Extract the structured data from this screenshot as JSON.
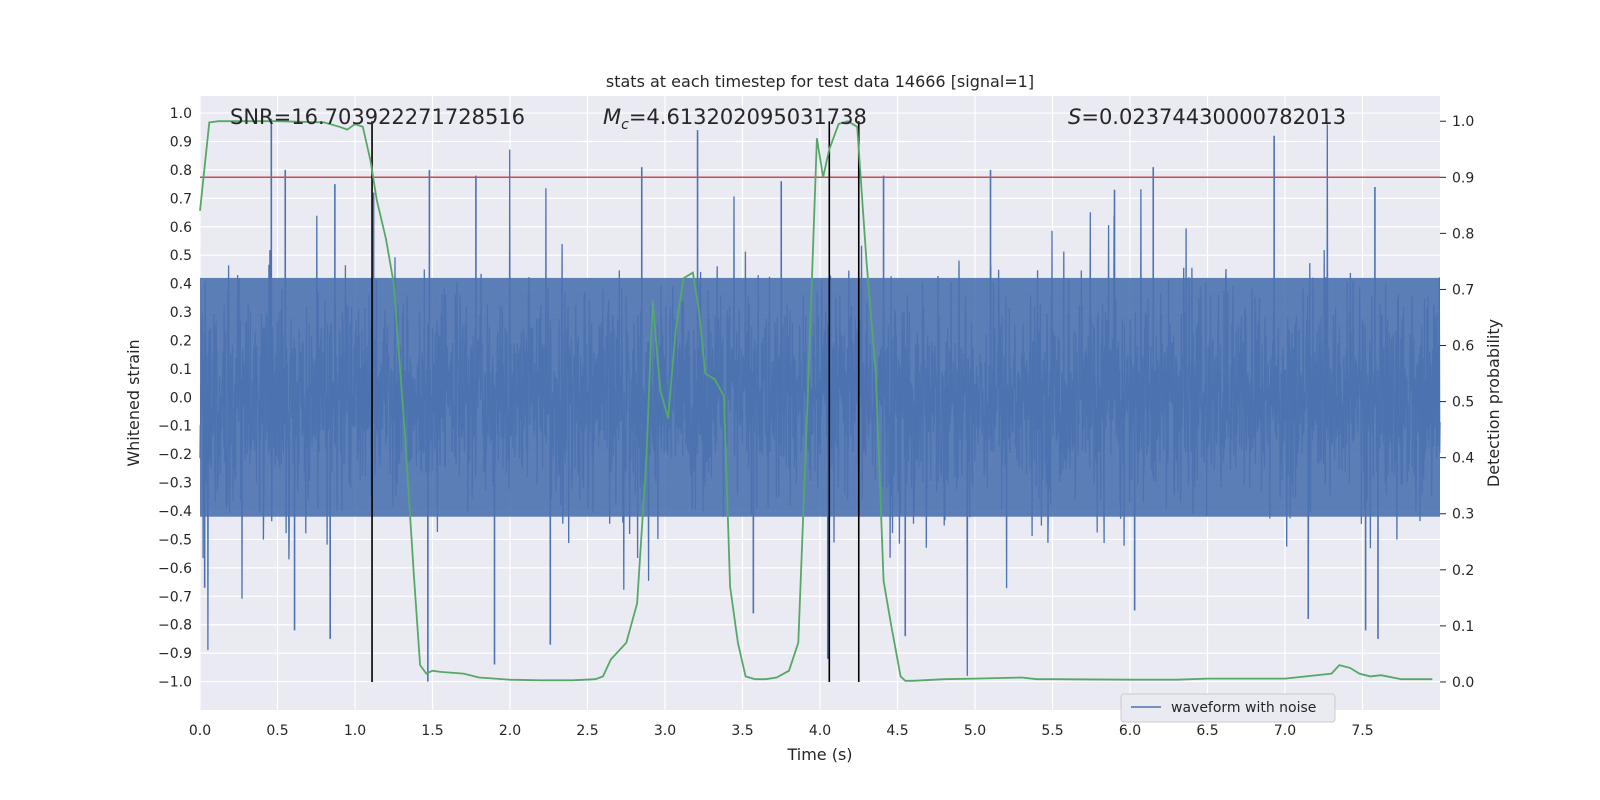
{
  "chart_data": {
    "type": "line",
    "title": "stats at each timestep for test data 14666 [signal=1]",
    "xlabel": "Time (s)",
    "ylabel_left": "Whitened strain",
    "ylabel_right": "Detection probability",
    "xlim": [
      0.0,
      8.0
    ],
    "ylim_left": [
      -1.1,
      1.06
    ],
    "ylim_right": [
      -0.05,
      1.045
    ],
    "xticks": [
      0.0,
      0.5,
      1.0,
      1.5,
      2.0,
      2.5,
      3.0,
      3.5,
      4.0,
      4.5,
      5.0,
      5.5,
      6.0,
      6.5,
      7.0,
      7.5
    ],
    "xtick_labels": [
      "0.0",
      "0.5",
      "1.0",
      "1.5",
      "2.0",
      "2.5",
      "3.0",
      "3.5",
      "4.0",
      "4.5",
      "5.0",
      "5.5",
      "6.0",
      "6.5",
      "7.0",
      "7.5"
    ],
    "yticks_left": [
      1.0,
      0.9,
      0.8,
      0.7,
      0.6,
      0.5,
      0.4,
      0.3,
      0.2,
      0.1,
      0.0,
      -0.1,
      -0.2,
      -0.3,
      -0.4,
      -0.5,
      -0.6,
      -0.7,
      -0.8,
      -0.9,
      -1.0
    ],
    "ytick_labels_left": [
      "1.0",
      "0.9",
      "0.8",
      "0.7",
      "0.6",
      "0.5",
      "0.4",
      "0.3",
      "0.2",
      "0.1",
      "0.0",
      "−0.1",
      "−0.2",
      "−0.3",
      "−0.4",
      "−0.5",
      "−0.6",
      "−0.7",
      "−0.8",
      "−0.9",
      "−1.0"
    ],
    "yticks_right": [
      1.0,
      0.9,
      0.8,
      0.7,
      0.6,
      0.5,
      0.4,
      0.3,
      0.2,
      0.1,
      0.0
    ],
    "ytick_labels_right": [
      "1.0",
      "0.9",
      "0.8",
      "0.7",
      "0.6",
      "0.5",
      "0.4",
      "0.3",
      "0.2",
      "0.1",
      "0.0"
    ],
    "grid": true,
    "annotations": {
      "snr": "SNR=16.703922271728516",
      "mc_symbol": "M",
      "mc_sub": "c",
      "mc_value": "=4.613202095031738",
      "s_symbol": "S",
      "s_value": "=0.02374430000782013"
    },
    "threshold_probability": 0.9,
    "vertical_lines_s": [
      1.11,
      4.06,
      4.25
    ],
    "waveform": {
      "name": "waveform with noise",
      "color": "#4c72b0",
      "band": [
        -0.42,
        0.42
      ],
      "spikes_up": [
        [
          0.46,
          0.98
        ],
        [
          0.55,
          0.8
        ],
        [
          0.87,
          0.75
        ],
        [
          1.12,
          0.72
        ],
        [
          1.48,
          0.8
        ],
        [
          1.78,
          0.78
        ],
        [
          2.85,
          0.81
        ],
        [
          3.21,
          0.94
        ],
        [
          3.75,
          0.76
        ],
        [
          4.41,
          0.78
        ],
        [
          5.1,
          0.8
        ],
        [
          5.9,
          0.73
        ],
        [
          6.15,
          0.81
        ],
        [
          6.93,
          0.92
        ],
        [
          7.58,
          0.74
        ]
      ],
      "spikes_down": [
        [
          0.03,
          -0.67
        ],
        [
          0.61,
          -0.82
        ],
        [
          0.84,
          -0.85
        ],
        [
          1.47,
          -1.0
        ],
        [
          1.9,
          -0.94
        ],
        [
          2.26,
          -0.87
        ],
        [
          3.57,
          -0.76
        ],
        [
          4.05,
          -0.92
        ],
        [
          4.55,
          -0.84
        ],
        [
          6.03,
          -0.75
        ],
        [
          7.15,
          -0.78
        ],
        [
          7.6,
          -0.85
        ],
        [
          7.52,
          -0.82
        ]
      ]
    },
    "detection_probability": {
      "color": "#55a868",
      "x": [
        0.0,
        0.06,
        0.12,
        0.3,
        0.5,
        0.8,
        0.9,
        0.95,
        1.0,
        1.05,
        1.1,
        1.14,
        1.2,
        1.25,
        1.32,
        1.38,
        1.42,
        1.46,
        1.5,
        1.55,
        1.7,
        1.8,
        2.0,
        2.2,
        2.4,
        2.55,
        2.6,
        2.65,
        2.75,
        2.82,
        2.88,
        2.92,
        2.97,
        3.02,
        3.07,
        3.12,
        3.18,
        3.22,
        3.26,
        3.32,
        3.38,
        3.42,
        3.47,
        3.52,
        3.58,
        3.65,
        3.72,
        3.8,
        3.86,
        3.92,
        3.98,
        4.02,
        4.06,
        4.12,
        4.18,
        4.24,
        4.3,
        4.36,
        4.41,
        4.46,
        4.52,
        4.55,
        4.6,
        4.8,
        5.0,
        5.3,
        5.4,
        5.5,
        6.0,
        6.3,
        6.5,
        7.0,
        7.3,
        7.35,
        7.42,
        7.48,
        7.55,
        7.62,
        7.75,
        7.95
      ],
      "y": [
        0.84,
        0.998,
        1.0,
        1.0,
        1.0,
        0.998,
        0.99,
        0.985,
        0.995,
        0.99,
        0.93,
        0.86,
        0.79,
        0.71,
        0.45,
        0.19,
        0.03,
        0.015,
        0.02,
        0.018,
        0.015,
        0.008,
        0.004,
        0.003,
        0.003,
        0.005,
        0.01,
        0.04,
        0.07,
        0.14,
        0.4,
        0.68,
        0.52,
        0.47,
        0.63,
        0.72,
        0.73,
        0.66,
        0.55,
        0.54,
        0.51,
        0.17,
        0.07,
        0.01,
        0.005,
        0.005,
        0.008,
        0.02,
        0.07,
        0.5,
        0.97,
        0.9,
        0.95,
        0.995,
        1.0,
        0.99,
        0.75,
        0.55,
        0.18,
        0.1,
        0.01,
        0.002,
        0.002,
        0.005,
        0.006,
        0.008,
        0.005,
        0.005,
        0.004,
        0.004,
        0.006,
        0.006,
        0.015,
        0.03,
        0.025,
        0.015,
        0.01,
        0.012,
        0.005,
        0.005
      ]
    },
    "legend": {
      "placement": "lower-center-right",
      "label": "waveform with noise"
    },
    "colors": {
      "background": "#eaeaf2",
      "grid": "#ffffff",
      "threshold": "#c44e52",
      "vlines": "#000000",
      "text": "#262626"
    }
  }
}
